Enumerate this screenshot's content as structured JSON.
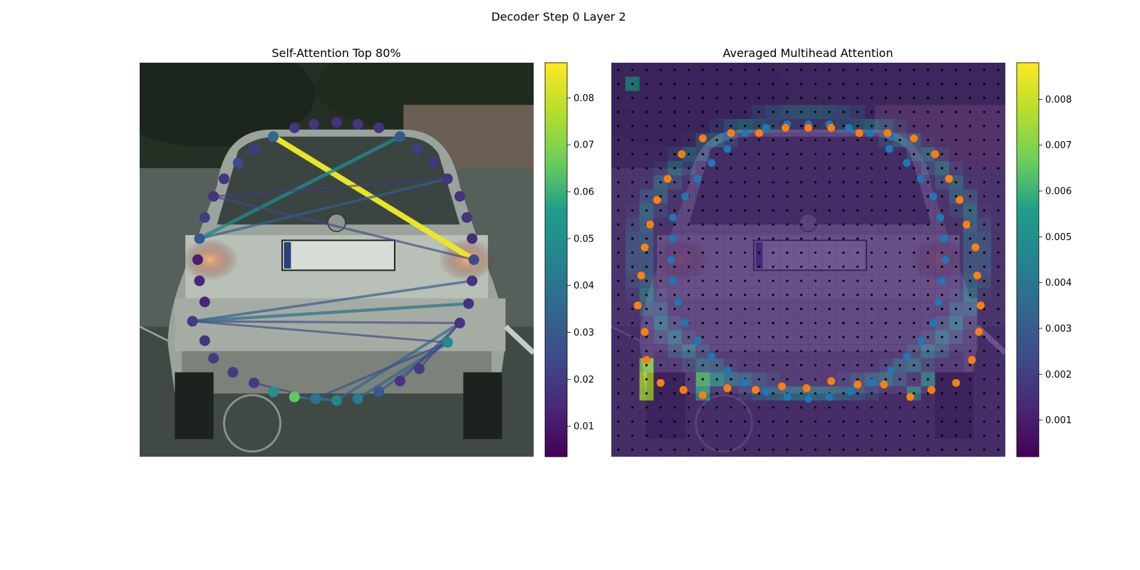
{
  "figure": {
    "title": "Decoder Step 0 Layer 2"
  },
  "colors": {
    "viridis": [
      "#440154",
      "#482777",
      "#3f4a8a",
      "#31678e",
      "#26838f",
      "#1f9d8a",
      "#6cce5a",
      "#b6de2b",
      "#fee825"
    ],
    "pred_points": "#1f77b4",
    "gt_points": "#ff7f0e",
    "grid_points": "#000000"
  },
  "chart_data": [
    {
      "type": "scatter",
      "title": "Self-Attention Top 80%",
      "xlim": [
        0,
        224
      ],
      "ylim": [
        224,
        0
      ],
      "colorbar": {
        "vmin": 0.0035,
        "vmax": 0.0875,
        "ticks": [
          0.01,
          0.02,
          0.03,
          0.04,
          0.05,
          0.06,
          0.07,
          0.08
        ]
      },
      "points": [
        {
          "x": 76,
          "y": 42,
          "v": 0.035
        },
        {
          "x": 88,
          "y": 37,
          "v": 0.018
        },
        {
          "x": 99,
          "y": 35,
          "v": 0.018
        },
        {
          "x": 112,
          "y": 34,
          "v": 0.017
        },
        {
          "x": 124,
          "y": 35,
          "v": 0.018
        },
        {
          "x": 136,
          "y": 37,
          "v": 0.018
        },
        {
          "x": 148,
          "y": 42,
          "v": 0.03
        },
        {
          "x": 158,
          "y": 49,
          "v": 0.02
        },
        {
          "x": 167,
          "y": 57,
          "v": 0.018
        },
        {
          "x": 175,
          "y": 66,
          "v": 0.018
        },
        {
          "x": 182,
          "y": 76,
          "v": 0.018
        },
        {
          "x": 186,
          "y": 88,
          "v": 0.018
        },
        {
          "x": 189,
          "y": 100,
          "v": 0.016
        },
        {
          "x": 190,
          "y": 112,
          "v": 0.025
        },
        {
          "x": 189,
          "y": 124,
          "v": 0.018
        },
        {
          "x": 187,
          "y": 137,
          "v": 0.017
        },
        {
          "x": 182,
          "y": 148,
          "v": 0.018
        },
        {
          "x": 175,
          "y": 159,
          "v": 0.048
        },
        {
          "x": 159,
          "y": 174,
          "v": 0.02
        },
        {
          "x": 148,
          "y": 181,
          "v": 0.018
        },
        {
          "x": 136,
          "y": 187,
          "v": 0.03
        },
        {
          "x": 124,
          "y": 191,
          "v": 0.043
        },
        {
          "x": 112,
          "y": 192,
          "v": 0.046
        },
        {
          "x": 100,
          "y": 191,
          "v": 0.04
        },
        {
          "x": 88,
          "y": 190,
          "v": 0.065
        },
        {
          "x": 76,
          "y": 187,
          "v": 0.052
        },
        {
          "x": 65,
          "y": 182,
          "v": 0.02
        },
        {
          "x": 53,
          "y": 176,
          "v": 0.02
        },
        {
          "x": 42,
          "y": 168,
          "v": 0.02
        },
        {
          "x": 37,
          "y": 158,
          "v": 0.018
        },
        {
          "x": 30,
          "y": 147,
          "v": 0.02
        },
        {
          "x": 37,
          "y": 136,
          "v": 0.014
        },
        {
          "x": 34,
          "y": 124,
          "v": 0.014
        },
        {
          "x": 33,
          "y": 112,
          "v": 0.012
        },
        {
          "x": 34,
          "y": 100,
          "v": 0.03
        },
        {
          "x": 37,
          "y": 88,
          "v": 0.02
        },
        {
          "x": 42,
          "y": 76,
          "v": 0.018
        },
        {
          "x": 48,
          "y": 66,
          "v": 0.018
        },
        {
          "x": 56,
          "y": 57,
          "v": 0.025
        },
        {
          "x": 65,
          "y": 49,
          "v": 0.02
        }
      ],
      "edges": [
        {
          "from": 0,
          "to": 13,
          "v": 0.085
        },
        {
          "from": 34,
          "to": 6,
          "v": 0.048
        },
        {
          "from": 34,
          "to": 9,
          "v": 0.032
        },
        {
          "from": 36,
          "to": 13,
          "v": 0.025
        },
        {
          "from": 36,
          "to": 9,
          "v": 0.02
        },
        {
          "from": 30,
          "to": 14,
          "v": 0.03
        },
        {
          "from": 30,
          "to": 16,
          "v": 0.025
        },
        {
          "from": 30,
          "to": 15,
          "v": 0.04
        },
        {
          "from": 30,
          "to": 17,
          "v": 0.022
        },
        {
          "from": 24,
          "to": 22,
          "v": 0.04
        },
        {
          "from": 21,
          "to": 17,
          "v": 0.035
        },
        {
          "from": 20,
          "to": 17,
          "v": 0.03
        },
        {
          "from": 22,
          "to": 16,
          "v": 0.035
        },
        {
          "from": 23,
          "to": 17,
          "v": 0.025
        },
        {
          "from": 19,
          "to": 16,
          "v": 0.022
        },
        {
          "from": 18,
          "to": 16,
          "v": 0.02
        },
        {
          "from": 26,
          "to": 23,
          "v": 0.018
        }
      ]
    },
    {
      "type": "heatmap",
      "title": "Averaged Multihead Attention",
      "xlim": [
        0,
        224
      ],
      "ylim": [
        224,
        0
      ],
      "colorbar": {
        "vmin": 0.0002,
        "vmax": 0.0088,
        "ticks": [
          0.001,
          0.002,
          0.003,
          0.004,
          0.005,
          0.006,
          0.007,
          0.008
        ]
      },
      "grid_size": 28,
      "cell_unit": 8,
      "base_value": 0.0012,
      "hot_cells": [
        {
          "col": 1,
          "row": 1,
          "v": 0.005
        },
        {
          "col": 2,
          "row": 21,
          "v": 0.007
        },
        {
          "col": 2,
          "row": 22,
          "v": 0.0078
        },
        {
          "col": 2,
          "row": 23,
          "v": 0.0075
        },
        {
          "col": 6,
          "row": 22,
          "v": 0.0062
        },
        {
          "col": 6,
          "row": 23,
          "v": 0.0056
        },
        {
          "col": 7,
          "row": 22,
          "v": 0.0048
        },
        {
          "col": 21,
          "row": 23,
          "v": 0.0042
        },
        {
          "col": 22,
          "row": 22,
          "v": 0.004
        }
      ],
      "ring": {
        "cx": 112,
        "cy": 109,
        "rx": 96,
        "ry": 79,
        "width": 9,
        "v": 0.0036
      },
      "pred_points": [
        {
          "x": 112,
          "y": 35
        },
        {
          "x": 124,
          "y": 35
        },
        {
          "x": 100,
          "y": 35
        },
        {
          "x": 135,
          "y": 37
        },
        {
          "x": 88,
          "y": 37
        },
        {
          "x": 147,
          "y": 40
        },
        {
          "x": 76,
          "y": 40
        },
        {
          "x": 159,
          "y": 42
        },
        {
          "x": 66,
          "y": 42
        },
        {
          "x": 158,
          "y": 49
        },
        {
          "x": 66,
          "y": 49
        },
        {
          "x": 168,
          "y": 57
        },
        {
          "x": 57,
          "y": 57
        },
        {
          "x": 176,
          "y": 66
        },
        {
          "x": 49,
          "y": 66
        },
        {
          "x": 183,
          "y": 76
        },
        {
          "x": 42,
          "y": 76
        },
        {
          "x": 187,
          "y": 88
        },
        {
          "x": 35,
          "y": 88
        },
        {
          "x": 189,
          "y": 100
        },
        {
          "x": 35,
          "y": 100
        },
        {
          "x": 190,
          "y": 112
        },
        {
          "x": 34,
          "y": 112
        },
        {
          "x": 188,
          "y": 124
        },
        {
          "x": 35,
          "y": 124
        },
        {
          "x": 186,
          "y": 136
        },
        {
          "x": 38,
          "y": 136
        },
        {
          "x": 183,
          "y": 148
        },
        {
          "x": 42,
          "y": 148
        },
        {
          "x": 176,
          "y": 158
        },
        {
          "x": 49,
          "y": 158
        },
        {
          "x": 168,
          "y": 167
        },
        {
          "x": 57,
          "y": 167
        },
        {
          "x": 159,
          "y": 175
        },
        {
          "x": 66,
          "y": 175
        },
        {
          "x": 148,
          "y": 182
        },
        {
          "x": 76,
          "y": 182
        },
        {
          "x": 136,
          "y": 187
        },
        {
          "x": 88,
          "y": 187
        },
        {
          "x": 124,
          "y": 190
        },
        {
          "x": 100,
          "y": 190
        },
        {
          "x": 112,
          "y": 191
        }
      ],
      "gt_points": [
        {
          "x": 112,
          "y": 37
        },
        {
          "x": 125,
          "y": 37
        },
        {
          "x": 99,
          "y": 37
        },
        {
          "x": 141,
          "y": 40
        },
        {
          "x": 84,
          "y": 40
        },
        {
          "x": 157,
          "y": 40
        },
        {
          "x": 68,
          "y": 40
        },
        {
          "x": 172,
          "y": 43
        },
        {
          "x": 52,
          "y": 43
        },
        {
          "x": 184,
          "y": 52
        },
        {
          "x": 40,
          "y": 52
        },
        {
          "x": 192,
          "y": 66
        },
        {
          "x": 32,
          "y": 66
        },
        {
          "x": 198,
          "y": 78
        },
        {
          "x": 26,
          "y": 78
        },
        {
          "x": 202,
          "y": 92
        },
        {
          "x": 22,
          "y": 92
        },
        {
          "x": 207,
          "y": 105
        },
        {
          "x": 19,
          "y": 105
        },
        {
          "x": 208,
          "y": 121
        },
        {
          "x": 17,
          "y": 121
        },
        {
          "x": 210,
          "y": 138
        },
        {
          "x": 15,
          "y": 138
        },
        {
          "x": 209,
          "y": 153
        },
        {
          "x": 19,
          "y": 153
        },
        {
          "x": 205,
          "y": 169
        },
        {
          "x": 20,
          "y": 169
        },
        {
          "x": 196,
          "y": 182
        },
        {
          "x": 28,
          "y": 182
        },
        {
          "x": 182,
          "y": 186
        },
        {
          "x": 41,
          "y": 186
        },
        {
          "x": 170,
          "y": 190
        },
        {
          "x": 52,
          "y": 189
        },
        {
          "x": 155,
          "y": 183
        },
        {
          "x": 66,
          "y": 185
        },
        {
          "x": 140,
          "y": 183
        },
        {
          "x": 82,
          "y": 186
        },
        {
          "x": 125,
          "y": 181
        },
        {
          "x": 97,
          "y": 184
        },
        {
          "x": 111,
          "y": 185
        }
      ],
      "grid_points_spacing": 8
    }
  ]
}
